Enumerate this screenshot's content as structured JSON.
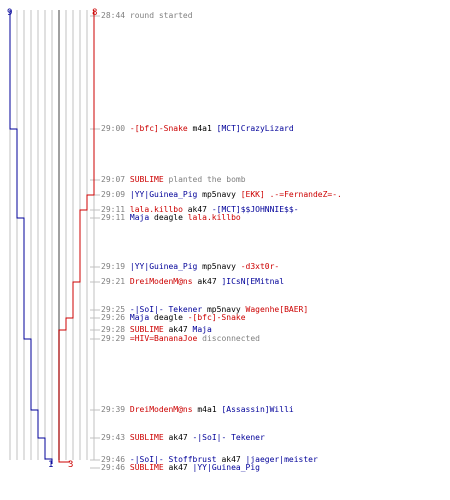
{
  "header": {
    "team_blue_start": "9",
    "team_red_start": "8",
    "team_blue_end": "1",
    "team_red_end": "3"
  },
  "colors": {
    "blue_team": "#000099",
    "red_team": "#cc0000",
    "timestamp": "#808080",
    "gridline": "#c0c0c0"
  },
  "events": [
    {
      "time": "28:44",
      "parts": [
        {
          "text": "round started",
          "c": "gray"
        }
      ]
    },
    {
      "time": "29:00",
      "parts": [
        {
          "text": "-[bfc]-Snake",
          "c": "red"
        },
        {
          "text": " m4a1 ",
          "c": "blk"
        },
        {
          "text": "[MCT]CrazyLizard",
          "c": "blue"
        }
      ]
    },
    {
      "time": "29:07",
      "parts": [
        {
          "text": "SUBLIME",
          "c": "red"
        },
        {
          "text": " planted the bomb",
          "c": "gray"
        }
      ]
    },
    {
      "time": "29:09",
      "parts": [
        {
          "text": "|YY|Guinea_Pig",
          "c": "blue"
        },
        {
          "text": " mp5navy ",
          "c": "blk"
        },
        {
          "text": "[EKK] .-=FernandeZ=-.",
          "c": "red"
        }
      ]
    },
    {
      "time": "29:11",
      "parts": [
        {
          "text": "lala.killbo",
          "c": "red"
        },
        {
          "text": " ak47 ",
          "c": "blk"
        },
        {
          "text": "-[MCT]$$JOHNNIE$$-",
          "c": "blue"
        }
      ]
    },
    {
      "time": "29:11",
      "parts": [
        {
          "text": "Maja",
          "c": "blue"
        },
        {
          "text": " deagle ",
          "c": "blk"
        },
        {
          "text": "lala.killbo",
          "c": "red"
        }
      ]
    },
    {
      "time": "29:19",
      "parts": [
        {
          "text": "|YY|Guinea_Pig",
          "c": "blue"
        },
        {
          "text": " mp5navy ",
          "c": "blk"
        },
        {
          "text": "-d3xt0r-",
          "c": "red"
        }
      ]
    },
    {
      "time": "29:21",
      "parts": [
        {
          "text": "DreiModenM@ns",
          "c": "red"
        },
        {
          "text": " ak47 ",
          "c": "blk"
        },
        {
          "text": "]ICsN[EMitnal",
          "c": "blue"
        }
      ]
    },
    {
      "time": "29:25",
      "parts": [
        {
          "text": "-|SoI|- Tekener",
          "c": "blue"
        },
        {
          "text": " mp5navy ",
          "c": "blk"
        },
        {
          "text": "Wagenhe[BAER]",
          "c": "red"
        }
      ]
    },
    {
      "time": "29:26",
      "parts": [
        {
          "text": "Maja",
          "c": "blue"
        },
        {
          "text": " deagle ",
          "c": "blk"
        },
        {
          "text": "-[bfc]-Snake",
          "c": "red"
        }
      ]
    },
    {
      "time": "29:28",
      "parts": [
        {
          "text": "SUBLIME",
          "c": "red"
        },
        {
          "text": " ak47 ",
          "c": "blk"
        },
        {
          "text": "Maja",
          "c": "blue"
        }
      ]
    },
    {
      "time": "29:29",
      "parts": [
        {
          "text": "=HIV=BananaJoe",
          "c": "red"
        },
        {
          "text": " disconnected",
          "c": "gray"
        }
      ]
    },
    {
      "time": "29:39",
      "parts": [
        {
          "text": "DreiModenM@ns",
          "c": "red"
        },
        {
          "text": " m4a1 ",
          "c": "blk"
        },
        {
          "text": "[Assassin]Willi",
          "c": "blue"
        }
      ]
    },
    {
      "time": "29:43",
      "parts": [
        {
          "text": "SUBLIME",
          "c": "red"
        },
        {
          "text": " ak47 ",
          "c": "blk"
        },
        {
          "text": "-|SoI|- Tekener",
          "c": "blue"
        }
      ]
    },
    {
      "time": "29:46",
      "parts": [
        {
          "text": "-|SoI|- Stoffbrust",
          "c": "blue"
        },
        {
          "text": " ak47 ",
          "c": "blk"
        },
        {
          "text": "|jaeger|meister",
          "c": "blue"
        }
      ]
    },
    {
      "time": "29:46",
      "parts": [
        {
          "text": "SUBLIME",
          "c": "red"
        },
        {
          "text": " ak47 ",
          "c": "blk"
        },
        {
          "text": "|YY|Guinea_Pig",
          "c": "blue"
        }
      ]
    }
  ]
}
